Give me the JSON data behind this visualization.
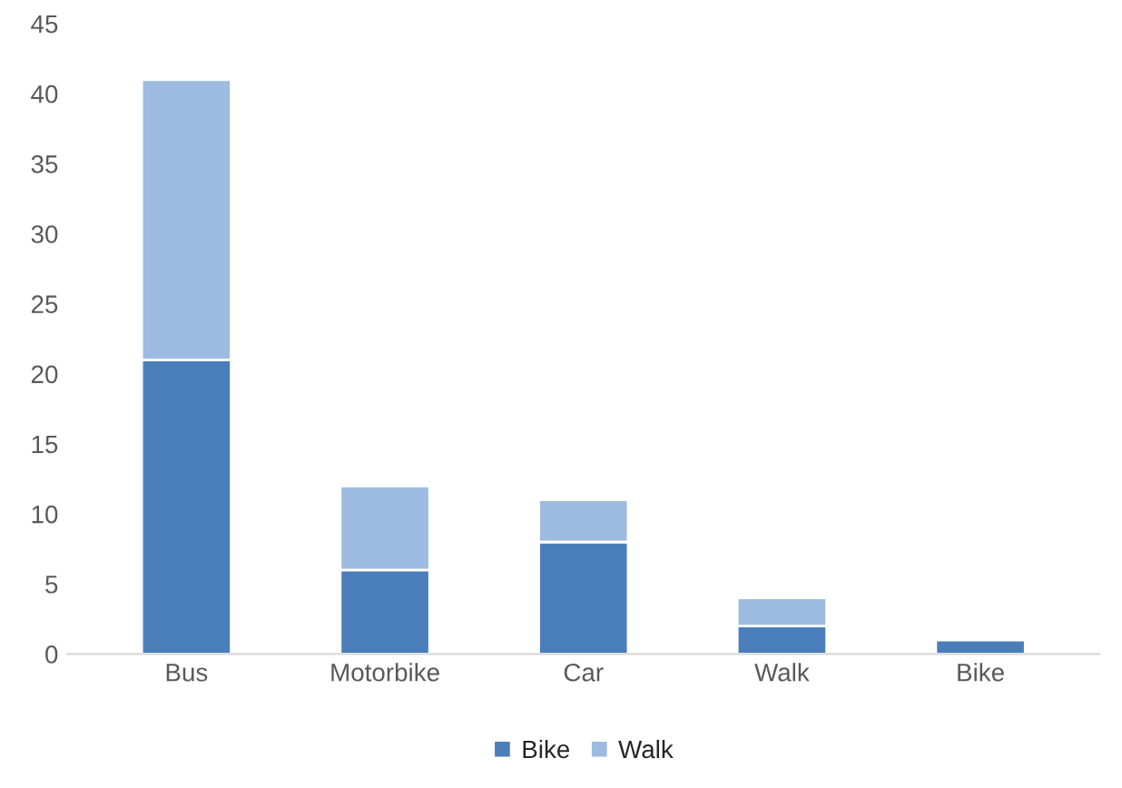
{
  "chart_data": {
    "type": "bar",
    "stacked": true,
    "categories": [
      "Bus",
      "Motorbike",
      "Car",
      "Walk",
      "Bike"
    ],
    "series": [
      {
        "name": "Bike",
        "color": "#4a7ebb",
        "values": [
          21,
          6,
          8,
          2,
          1
        ]
      },
      {
        "name": "Walk",
        "color": "#9dbbe0",
        "values": [
          20,
          6,
          3,
          2,
          null
        ]
      }
    ],
    "ylim": [
      0,
      45
    ],
    "yticks": [
      0,
      5,
      10,
      15,
      20,
      25,
      30,
      35,
      40,
      45
    ],
    "grid": false,
    "legend": "bottom"
  }
}
